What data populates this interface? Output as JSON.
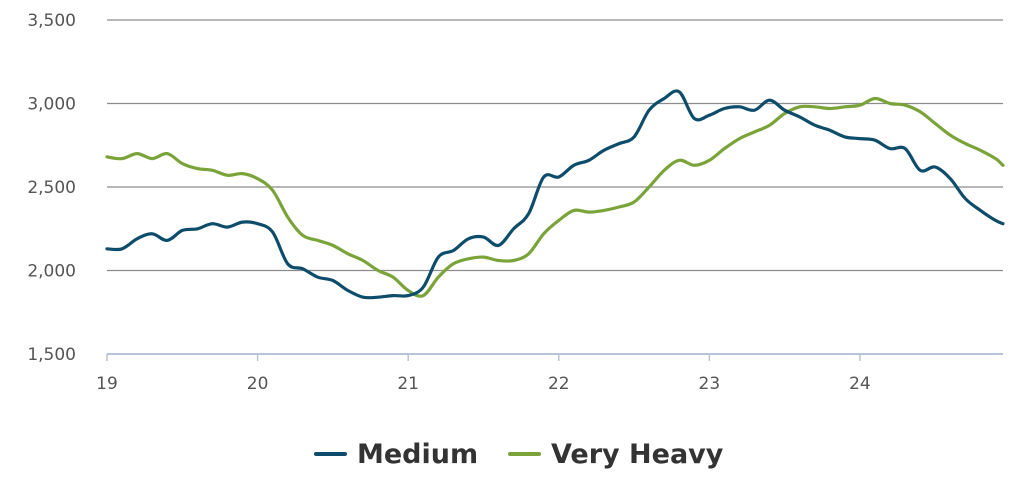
{
  "chart_data": {
    "type": "line",
    "title": "",
    "xlabel": "",
    "ylabel": "",
    "xlim": [
      19,
      24.95
    ],
    "ylim": [
      1500,
      3500
    ],
    "x_ticks": [
      19,
      20,
      21,
      22,
      23,
      24
    ],
    "x_tick_labels": [
      "19",
      "20",
      "21",
      "22",
      "23",
      "24"
    ],
    "y_ticks": [
      1500,
      2000,
      2500,
      3000,
      3500
    ],
    "y_tick_labels": [
      "1,500",
      "2,000",
      "2,500",
      "3,000",
      "3,500"
    ],
    "grid": true,
    "legend_position": "bottom-center",
    "series": [
      {
        "name": "Medium",
        "color": "#0d4d6b",
        "x": [
          19.0,
          19.1,
          19.2,
          19.3,
          19.4,
          19.5,
          19.6,
          19.7,
          19.8,
          19.9,
          20.0,
          20.1,
          20.2,
          20.3,
          20.4,
          20.5,
          20.6,
          20.7,
          20.8,
          20.9,
          21.0,
          21.1,
          21.2,
          21.3,
          21.4,
          21.5,
          21.6,
          21.7,
          21.8,
          21.9,
          22.0,
          22.1,
          22.2,
          22.3,
          22.4,
          22.5,
          22.6,
          22.7,
          22.8,
          22.9,
          23.0,
          23.1,
          23.2,
          23.3,
          23.4,
          23.5,
          23.6,
          23.7,
          23.8,
          23.9,
          24.0,
          24.1,
          24.2,
          24.3,
          24.4,
          24.5,
          24.6,
          24.7,
          24.8,
          24.9,
          24.95
        ],
        "y": [
          2130,
          2130,
          2190,
          2220,
          2180,
          2240,
          2250,
          2280,
          2260,
          2290,
          2280,
          2230,
          2040,
          2010,
          1960,
          1940,
          1880,
          1840,
          1840,
          1850,
          1850,
          1900,
          2080,
          2120,
          2190,
          2200,
          2150,
          2250,
          2340,
          2560,
          2560,
          2630,
          2660,
          2720,
          2760,
          2800,
          2960,
          3030,
          3070,
          2910,
          2930,
          2970,
          2980,
          2960,
          3020,
          2960,
          2920,
          2870,
          2840,
          2800,
          2790,
          2780,
          2730,
          2730,
          2600,
          2620,
          2550,
          2430,
          2360,
          2300,
          2280
        ]
      },
      {
        "name": "Very Heavy",
        "color": "#7aa33a",
        "x": [
          19.0,
          19.1,
          19.2,
          19.3,
          19.4,
          19.5,
          19.6,
          19.7,
          19.8,
          19.9,
          20.0,
          20.1,
          20.2,
          20.3,
          20.4,
          20.5,
          20.6,
          20.7,
          20.8,
          20.9,
          21.0,
          21.1,
          21.2,
          21.3,
          21.4,
          21.5,
          21.6,
          21.7,
          21.8,
          21.9,
          22.0,
          22.1,
          22.2,
          22.3,
          22.4,
          22.5,
          22.6,
          22.7,
          22.8,
          22.9,
          23.0,
          23.1,
          23.2,
          23.3,
          23.4,
          23.5,
          23.6,
          23.7,
          23.8,
          23.9,
          24.0,
          24.1,
          24.2,
          24.3,
          24.4,
          24.5,
          24.6,
          24.7,
          24.8,
          24.9,
          24.95
        ],
        "y": [
          2680,
          2670,
          2700,
          2670,
          2700,
          2640,
          2610,
          2600,
          2570,
          2580,
          2550,
          2480,
          2320,
          2210,
          2180,
          2150,
          2100,
          2060,
          2000,
          1960,
          1880,
          1850,
          1960,
          2040,
          2070,
          2080,
          2060,
          2060,
          2100,
          2220,
          2300,
          2360,
          2350,
          2360,
          2380,
          2410,
          2500,
          2600,
          2660,
          2630,
          2660,
          2730,
          2790,
          2830,
          2870,
          2940,
          2980,
          2980,
          2970,
          2980,
          2990,
          3030,
          3000,
          2990,
          2950,
          2880,
          2810,
          2760,
          2720,
          2670,
          2630
        ]
      }
    ]
  }
}
